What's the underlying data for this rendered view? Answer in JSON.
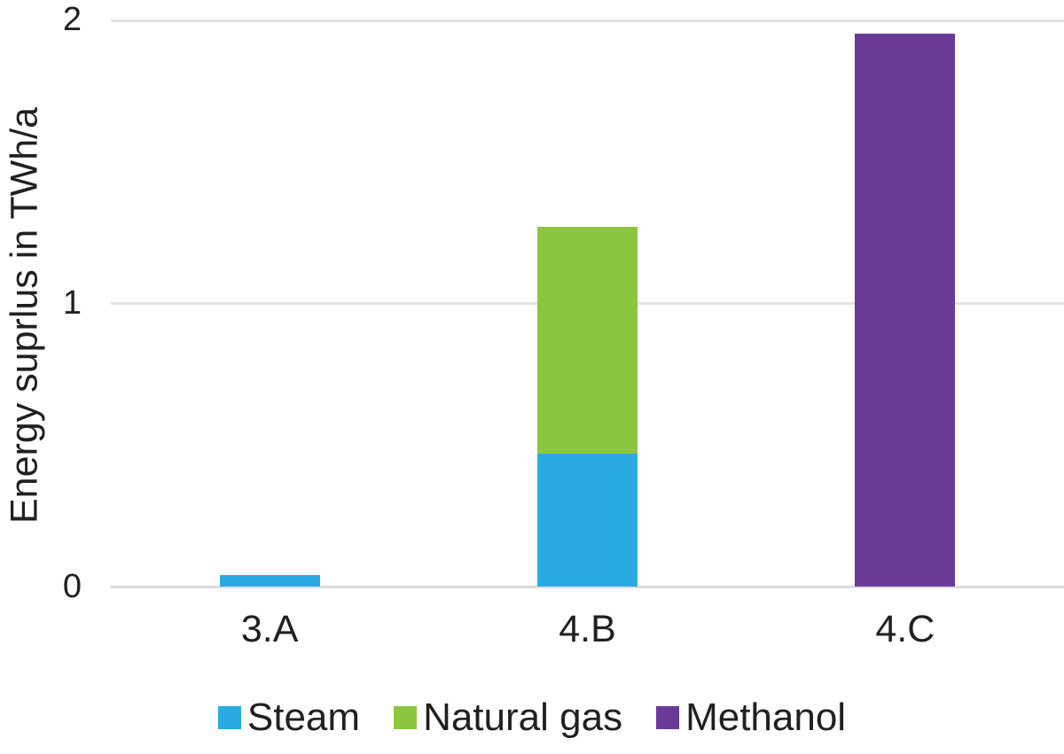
{
  "chart_data": {
    "type": "bar",
    "stacked": true,
    "title": "",
    "xlabel": "",
    "ylabel": "Energy suprlus in TWh/a",
    "categories": [
      "3.A",
      "4.B",
      "4.C"
    ],
    "series": [
      {
        "name": "Steam",
        "color": "#29ABE2",
        "values": [
          0.04,
          0.47,
          0
        ]
      },
      {
        "name": "Natural gas",
        "color": "#8CC63F",
        "values": [
          0,
          0.8,
          0
        ]
      },
      {
        "name": "Methanol",
        "color": "#6A3A97",
        "values": [
          0,
          0,
          1.95
        ]
      }
    ],
    "ylim": [
      0,
      2
    ],
    "yticks": [
      "0",
      "1",
      "2"
    ],
    "grid": "horizontal",
    "gridline_color": "#E2E2E2",
    "legend_position": "bottom"
  }
}
